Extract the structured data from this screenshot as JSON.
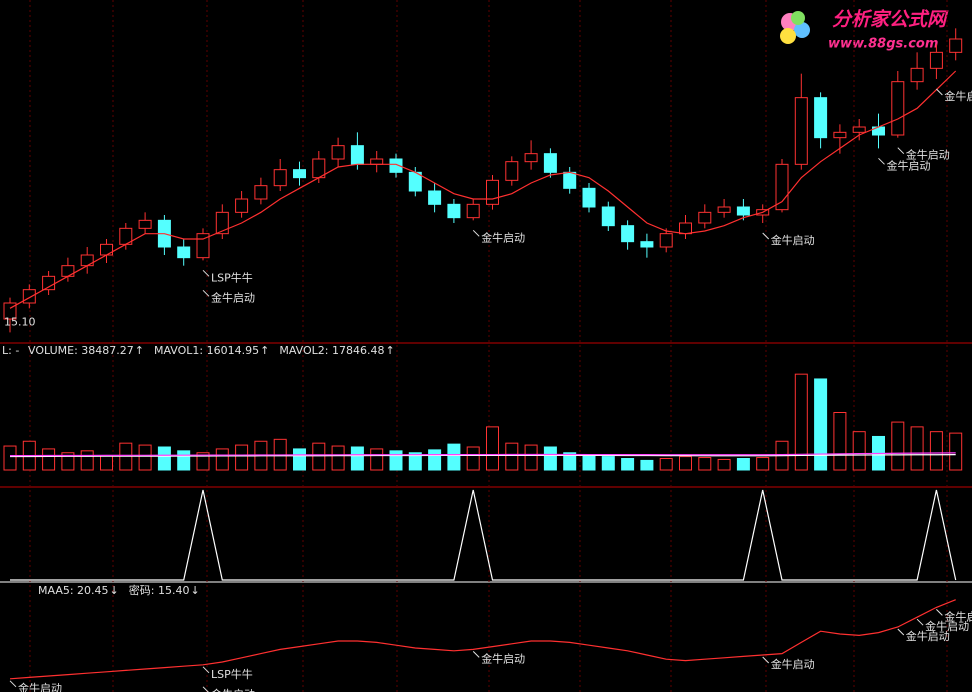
{
  "watermark": {
    "title": "分析家公式网",
    "url": "www.88gs.com"
  },
  "chart_data": [
    {
      "type": "candlestick",
      "ylim": [
        15,
        27
      ],
      "grid": true,
      "up_color": "#ff3232",
      "down_color": "#54ffff",
      "low_mark": {
        "value": 15.1,
        "label": "15.10"
      },
      "ohlc": [
        [
          15.6,
          16.4,
          15.1,
          16.2
        ],
        [
          16.2,
          16.9,
          16.0,
          16.7
        ],
        [
          16.7,
          17.4,
          16.5,
          17.2
        ],
        [
          17.2,
          17.9,
          17.0,
          17.6
        ],
        [
          17.6,
          18.3,
          17.3,
          18.0
        ],
        [
          18.0,
          18.6,
          17.7,
          18.4
        ],
        [
          18.4,
          19.2,
          18.2,
          19.0
        ],
        [
          19.0,
          19.6,
          18.8,
          19.3
        ],
        [
          19.3,
          19.5,
          18.0,
          18.3
        ],
        [
          18.3,
          18.6,
          17.6,
          17.9
        ],
        [
          17.9,
          19.0,
          17.8,
          18.8
        ],
        [
          18.8,
          19.9,
          18.6,
          19.6
        ],
        [
          19.6,
          20.4,
          19.4,
          20.1
        ],
        [
          20.1,
          20.9,
          19.9,
          20.6
        ],
        [
          20.6,
          21.6,
          20.4,
          21.2
        ],
        [
          21.2,
          21.5,
          20.6,
          20.9
        ],
        [
          20.9,
          21.9,
          20.7,
          21.6
        ],
        [
          21.6,
          22.4,
          21.3,
          22.1
        ],
        [
          22.1,
          22.6,
          21.2,
          21.4
        ],
        [
          21.4,
          21.9,
          21.1,
          21.6
        ],
        [
          21.6,
          21.8,
          20.9,
          21.1
        ],
        [
          21.1,
          21.3,
          20.2,
          20.4
        ],
        [
          20.4,
          20.7,
          19.6,
          19.9
        ],
        [
          19.9,
          20.1,
          19.2,
          19.4
        ],
        [
          19.4,
          20.1,
          19.3,
          19.9
        ],
        [
          19.9,
          21.0,
          19.7,
          20.8
        ],
        [
          20.8,
          21.7,
          20.6,
          21.5
        ],
        [
          21.5,
          22.3,
          21.2,
          21.8
        ],
        [
          21.8,
          22.0,
          20.9,
          21.1
        ],
        [
          21.1,
          21.3,
          20.3,
          20.5
        ],
        [
          20.5,
          20.7,
          19.6,
          19.8
        ],
        [
          19.8,
          20.0,
          18.9,
          19.1
        ],
        [
          19.1,
          19.3,
          18.2,
          18.5
        ],
        [
          18.5,
          18.8,
          17.9,
          18.3
        ],
        [
          18.3,
          19.0,
          18.1,
          18.8
        ],
        [
          18.8,
          19.5,
          18.6,
          19.2
        ],
        [
          19.2,
          19.9,
          19.0,
          19.6
        ],
        [
          19.6,
          20.1,
          19.4,
          19.8
        ],
        [
          19.8,
          20.1,
          19.3,
          19.5
        ],
        [
          19.5,
          19.9,
          19.2,
          19.7
        ],
        [
          19.7,
          21.6,
          19.6,
          21.4
        ],
        [
          21.4,
          24.8,
          21.2,
          23.9
        ],
        [
          23.9,
          24.1,
          22.0,
          22.4
        ],
        [
          22.4,
          22.9,
          21.8,
          22.6
        ],
        [
          22.6,
          23.1,
          22.3,
          22.8
        ],
        [
          22.8,
          23.3,
          22.0,
          22.5
        ],
        [
          22.5,
          24.9,
          22.4,
          24.5
        ],
        [
          24.5,
          25.6,
          24.2,
          25.0
        ],
        [
          25.0,
          25.9,
          24.6,
          25.6
        ],
        [
          25.6,
          26.5,
          25.3,
          26.1
        ]
      ],
      "series": [
        {
          "color": "#ff3030",
          "values": [
            16.0,
            16.4,
            16.8,
            17.2,
            17.6,
            18.0,
            18.4,
            18.8,
            18.8,
            18.6,
            18.6,
            18.9,
            19.2,
            19.6,
            20.1,
            20.5,
            20.9,
            21.3,
            21.4,
            21.4,
            21.4,
            21.1,
            20.7,
            20.3,
            20.1,
            20.1,
            20.3,
            20.7,
            21.0,
            21.1,
            20.9,
            20.4,
            19.8,
            19.2,
            18.9,
            18.8,
            18.9,
            19.1,
            19.4,
            19.6,
            20.0,
            20.9,
            21.5,
            22.0,
            22.5,
            22.8,
            23.1,
            23.5,
            24.2,
            24.9
          ]
        }
      ],
      "annotations": [
        {
          "text": "LSP牛牛",
          "x": 10
        },
        {
          "text": "金牛启动",
          "x": 10
        },
        {
          "text": "金牛启动",
          "x": 24
        },
        {
          "text": "金牛启动",
          "x": 39
        },
        {
          "text": "金牛启动",
          "x": 45
        },
        {
          "text": "金牛启动",
          "x": 46
        },
        {
          "text": "金牛启动",
          "x": 48
        }
      ]
    },
    {
      "type": "bar",
      "ylim": [
        0,
        120000
      ],
      "prefix": "L: -",
      "legend": [
        {
          "label": "VOLUME: 38487.27",
          "arrow": "↑",
          "color": "#e0e0e0"
        },
        {
          "label": "MAVOL1: 16014.95",
          "arrow": "↑",
          "color": "#e0e0e0"
        },
        {
          "label": "MAVOL2: 17846.48",
          "arrow": "↑",
          "color": "#ff40ff"
        }
      ],
      "values": [
        25000,
        30000,
        22000,
        18000,
        20000,
        15000,
        28000,
        26000,
        24000,
        20000,
        18000,
        22000,
        26000,
        30000,
        32000,
        22000,
        28000,
        25000,
        24000,
        22000,
        20000,
        18000,
        21000,
        27000,
        24000,
        45000,
        28000,
        26000,
        24000,
        18000,
        16000,
        14000,
        12000,
        10000,
        12000,
        14000,
        13000,
        11000,
        12000,
        13000,
        30000,
        100000,
        95000,
        60000,
        40000,
        35000,
        50000,
        45000,
        40000,
        38487.27
      ],
      "series": [
        {
          "color": "#ffffff",
          "values": [
            14000,
            14100,
            14200,
            14300,
            14300,
            14400,
            14400,
            14500,
            14500,
            14600,
            14600,
            14700,
            14700,
            14800,
            14800,
            14900,
            14900,
            15000,
            15000,
            15100,
            15100,
            15100,
            15200,
            15200,
            15200,
            15300,
            15300,
            15300,
            15300,
            15300,
            15200,
            15200,
            15100,
            15100,
            15000,
            15000,
            14900,
            14900,
            14900,
            14900,
            15000,
            15200,
            15400,
            15500,
            15600,
            15700,
            15800,
            15900,
            15950,
            16014.95
          ]
        },
        {
          "color": "#ff40ff",
          "values": [
            15000,
            15050,
            15100,
            15150,
            15200,
            15250,
            15300,
            15350,
            15400,
            15450,
            15500,
            15550,
            15600,
            15650,
            15700,
            15750,
            15800,
            15850,
            15900,
            15950,
            16000,
            16000,
            16050,
            16050,
            16100,
            16100,
            16150,
            16150,
            16150,
            16150,
            16100,
            16100,
            16050,
            16050,
            16000,
            16000,
            15950,
            15950,
            15950,
            15950,
            16050,
            16350,
            16650,
            16850,
            17050,
            17250,
            17450,
            17600,
            17750,
            17846.48
          ]
        }
      ]
    },
    {
      "type": "line",
      "ylim": [
        0,
        1
      ],
      "color": "#ffffff",
      "values": [
        0,
        0,
        0,
        0,
        0,
        0,
        0,
        0,
        0,
        0,
        1,
        0,
        0,
        0,
        0,
        0,
        0,
        0,
        0,
        0,
        0,
        0,
        0,
        0,
        1,
        0,
        0,
        0,
        0,
        0,
        0,
        0,
        0,
        0,
        0,
        0,
        0,
        0,
        0,
        1,
        0,
        0,
        0,
        0,
        0,
        0,
        0,
        0,
        1,
        0
      ]
    },
    {
      "type": "line",
      "ylim": [
        14,
        21
      ],
      "legend": [
        {
          "label": "MAA5: 20.45",
          "arrow": "↓",
          "color": "#ff3030"
        },
        {
          "label": "密码: 15.40",
          "arrow": "↓",
          "color": "#e0e0e0"
        }
      ],
      "color": "#ff3030",
      "values": [
        14.8,
        14.9,
        15.0,
        15.1,
        15.2,
        15.3,
        15.4,
        15.5,
        15.6,
        15.7,
        15.8,
        16.0,
        16.3,
        16.6,
        16.9,
        17.1,
        17.3,
        17.5,
        17.5,
        17.4,
        17.2,
        17.0,
        16.9,
        16.8,
        16.9,
        17.1,
        17.3,
        17.5,
        17.5,
        17.4,
        17.2,
        17.0,
        16.8,
        16.5,
        16.2,
        16.1,
        16.2,
        16.3,
        16.4,
        16.5,
        16.6,
        17.4,
        18.2,
        18.0,
        17.9,
        18.1,
        18.5,
        19.2,
        19.9,
        20.45
      ],
      "annotations": [
        {
          "text": "金牛启动",
          "x": 0
        },
        {
          "text": "LSP牛牛",
          "x": 10
        },
        {
          "text": "金牛启动",
          "x": 10
        },
        {
          "text": "金牛启动",
          "x": 24
        },
        {
          "text": "金牛启动",
          "x": 39
        },
        {
          "text": "金牛启动",
          "x": 46
        },
        {
          "text": "金牛启动",
          "x": 47
        },
        {
          "text": "金牛启动",
          "x": 48
        }
      ]
    }
  ]
}
